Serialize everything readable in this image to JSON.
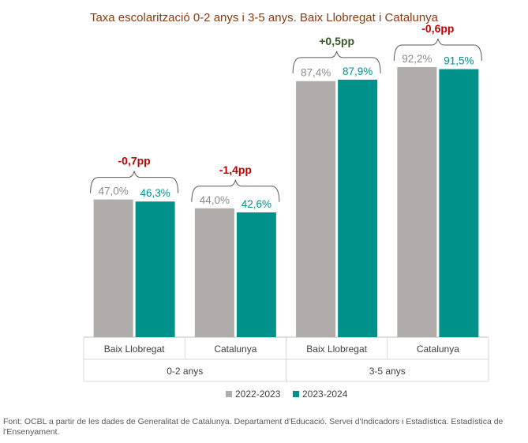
{
  "colors": {
    "series_2022": "#AFACA9",
    "series_2023": "#00918A",
    "label_2022": "#8C8C8C",
    "label_2023": "#00918A",
    "diff_negative": "#C00000",
    "diff_positive": "#375623",
    "title": "#8B3A0F"
  },
  "source": "Font: OCBL a partir de les dades de Generalitat de Catalunya. Departament d'Educació. Servei d'Indicadors i Estadística. Estadística de l'Ensenyament.",
  "chart_data": {
    "type": "bar",
    "title": "Taxa escolarització 0-2 anys i 3-5 anys. Baix Llobregat i Catalunya",
    "categories": [
      "Baix Llobregat",
      "Catalunya",
      "Baix Llobregat",
      "Catalunya"
    ],
    "groups": [
      {
        "label": "0-2 anys",
        "span": [
          0,
          1
        ]
      },
      {
        "label": "3-5 anys",
        "span": [
          2,
          3
        ]
      }
    ],
    "series": [
      {
        "name": "2022-2023",
        "values": [
          47.0,
          44.0,
          87.4,
          92.2
        ],
        "labels": [
          "47,0%",
          "44,0%",
          "87,4%",
          "92,2%"
        ]
      },
      {
        "name": "2023-2024",
        "values": [
          46.3,
          42.6,
          87.9,
          91.5
        ],
        "labels": [
          "46,3%",
          "42,6%",
          "87,9%",
          "91,5%"
        ]
      }
    ],
    "differences": [
      "-0,7pp",
      "-1,4pp",
      "+0,5pp",
      "-0,6pp"
    ],
    "difference_signs": [
      "negative",
      "negative",
      "positive",
      "negative"
    ],
    "ylim": [
      0,
      100
    ],
    "grid": false,
    "legend": "bottom"
  }
}
